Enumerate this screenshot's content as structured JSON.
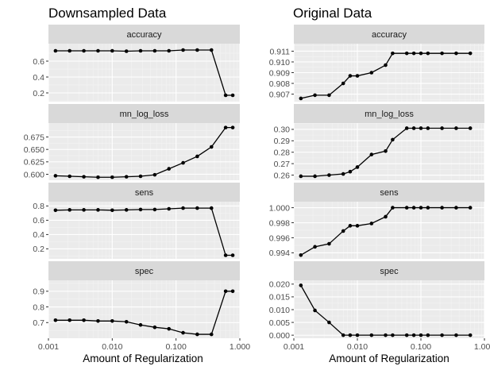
{
  "chart_data": [
    {
      "type": "line",
      "title": "Downsampled Data",
      "xlabel": "Amount of Regularization",
      "xscale": "log10",
      "xlim": [
        0.001,
        1.0
      ],
      "x_ticks": [
        0.001,
        0.01,
        0.1,
        1.0
      ],
      "x_tick_labels": [
        "0.001",
        "0.010",
        "0.100",
        "1.000"
      ],
      "x": [
        0.00129,
        0.00215,
        0.00359,
        0.00599,
        0.01,
        0.0167,
        0.0278,
        0.0464,
        0.0774,
        0.129,
        0.215,
        0.359,
        0.599,
        0.774
      ],
      "panels": [
        {
          "strip": "accuracy",
          "ylim": [
            0.09,
            0.82
          ],
          "y_ticks": [
            0.2,
            0.4,
            0.6
          ],
          "y_tick_labels": [
            "0.2",
            "0.4",
            "0.6"
          ],
          "values": [
            0.73,
            0.73,
            0.73,
            0.73,
            0.73,
            0.725,
            0.73,
            0.73,
            0.73,
            0.74,
            0.74,
            0.74,
            0.17,
            0.17
          ]
        },
        {
          "strip": "mn_log_loss",
          "ylim": [
            0.588,
            0.703
          ],
          "y_ticks": [
            0.6,
            0.625,
            0.65,
            0.675
          ],
          "y_tick_labels": [
            "0.600",
            "0.625",
            "0.650",
            "0.675"
          ],
          "values": [
            0.597,
            0.596,
            0.595,
            0.594,
            0.594,
            0.595,
            0.596,
            0.599,
            0.611,
            0.623,
            0.636,
            0.655,
            0.694,
            0.694
          ]
        },
        {
          "strip": "sens",
          "ylim": [
            0.06,
            0.86
          ],
          "y_ticks": [
            0.2,
            0.4,
            0.6,
            0.8
          ],
          "y_tick_labels": [
            "0.2",
            "0.4",
            "0.6",
            "0.8"
          ],
          "values": [
            0.74,
            0.745,
            0.745,
            0.745,
            0.74,
            0.745,
            0.75,
            0.75,
            0.76,
            0.77,
            0.77,
            0.77,
            0.11,
            0.11
          ]
        },
        {
          "strip": "spec",
          "ylim": [
            0.6,
            0.97
          ],
          "y_ticks": [
            0.7,
            0.8,
            0.9
          ],
          "y_tick_labels": [
            "0.7",
            "0.8",
            "0.9"
          ],
          "values": [
            0.715,
            0.715,
            0.715,
            0.71,
            0.71,
            0.705,
            0.685,
            0.67,
            0.66,
            0.635,
            0.625,
            0.625,
            0.9,
            0.9
          ]
        }
      ]
    },
    {
      "type": "line",
      "title": "Original Data",
      "xlabel": "Amount of Regularization",
      "xscale": "log10",
      "xlim": [
        0.001,
        1.0
      ],
      "x_ticks": [
        0.001,
        0.01,
        0.1,
        1.0
      ],
      "x_tick_labels": [
        "0.001",
        "0.010",
        "0.100",
        "1.000"
      ],
      "x": [
        0.00129,
        0.00215,
        0.00359,
        0.00599,
        0.0077,
        0.01,
        0.0167,
        0.0278,
        0.0359,
        0.0599,
        0.0774,
        0.1,
        0.129,
        0.215,
        0.359,
        0.599
      ],
      "panels": [
        {
          "strip": "accuracy",
          "ylim": [
            0.9063,
            0.9117
          ],
          "y_ticks": [
            0.907,
            0.908,
            0.909,
            0.91,
            0.911
          ],
          "y_tick_labels": [
            "0.907",
            "0.908",
            "0.909",
            "0.910",
            "0.911"
          ],
          "values": [
            0.9066,
            0.9069,
            0.9069,
            0.908,
            0.9087,
            0.9087,
            0.909,
            0.9097,
            0.9108,
            0.9108,
            0.9108,
            0.9108,
            0.9108,
            0.9108,
            0.9108,
            0.9108
          ]
        },
        {
          "strip": "mn_log_loss",
          "ylim": [
            0.2555,
            0.3055
          ],
          "y_ticks": [
            0.26,
            0.27,
            0.28,
            0.29,
            0.3
          ],
          "y_tick_labels": [
            "0.26",
            "0.27",
            "0.28",
            "0.29",
            "0.30"
          ],
          "values": [
            0.259,
            0.259,
            0.26,
            0.261,
            0.263,
            0.267,
            0.278,
            0.281,
            0.291,
            0.301,
            0.301,
            0.301,
            0.301,
            0.301,
            0.301,
            0.301
          ]
        },
        {
          "strip": "sens",
          "ylim": [
            0.9932,
            1.0008
          ],
          "y_ticks": [
            0.994,
            0.996,
            0.998,
            1.0
          ],
          "y_tick_labels": [
            "0.994",
            "0.996",
            "0.998",
            "1.000"
          ],
          "values": [
            0.9937,
            0.9948,
            0.9952,
            0.9969,
            0.9976,
            0.9976,
            0.9979,
            0.9988,
            1.0,
            1.0,
            1.0,
            1.0,
            1.0,
            1.0,
            1.0,
            1.0
          ]
        },
        {
          "strip": "spec",
          "ylim": [
            -0.0012,
            0.0215
          ],
          "y_ticks": [
            0.0,
            0.005,
            0.01,
            0.015,
            0.02
          ],
          "y_tick_labels": [
            "0.000",
            "0.005",
            "0.010",
            "0.015",
            "0.020"
          ],
          "values": [
            0.0195,
            0.0097,
            0.005,
            0.0,
            0.0,
            0.0,
            0.0,
            0.0,
            0.0,
            0.0,
            0.0,
            0.0,
            0.0,
            0.0,
            0.0,
            0.0
          ]
        }
      ]
    }
  ]
}
